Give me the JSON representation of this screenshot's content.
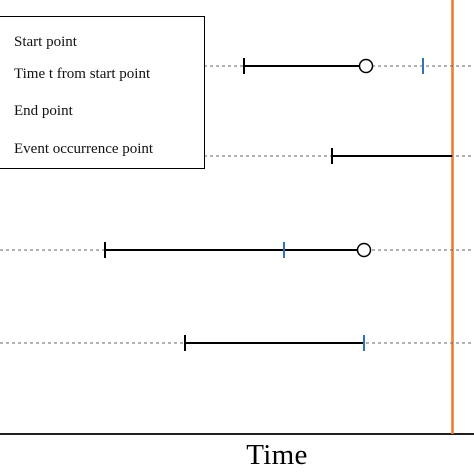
{
  "legend": {
    "items": [
      {
        "label": "Start point"
      },
      {
        "label": "Time t from start point"
      },
      {
        "label": "End point"
      },
      {
        "label": "Event occurrence point"
      }
    ]
  },
  "axis": {
    "title": "Time"
  },
  "colors": {
    "line": "#000000",
    "time_t_marker": "#2e75b6",
    "event_line": "#ed7d31",
    "guide": "#666666"
  },
  "rows": [
    {
      "start": 244,
      "time_t": 423,
      "end_marker": "open-circle",
      "end": 366
    },
    {
      "start": 332,
      "time_t": null,
      "end_marker": "none",
      "end": 452
    },
    {
      "start": 105,
      "time_t": 284,
      "end_marker": "open-circle",
      "end": 364
    },
    {
      "start": 185,
      "time_t": 364,
      "end_marker": "tick-blue",
      "end": 364
    }
  ]
}
